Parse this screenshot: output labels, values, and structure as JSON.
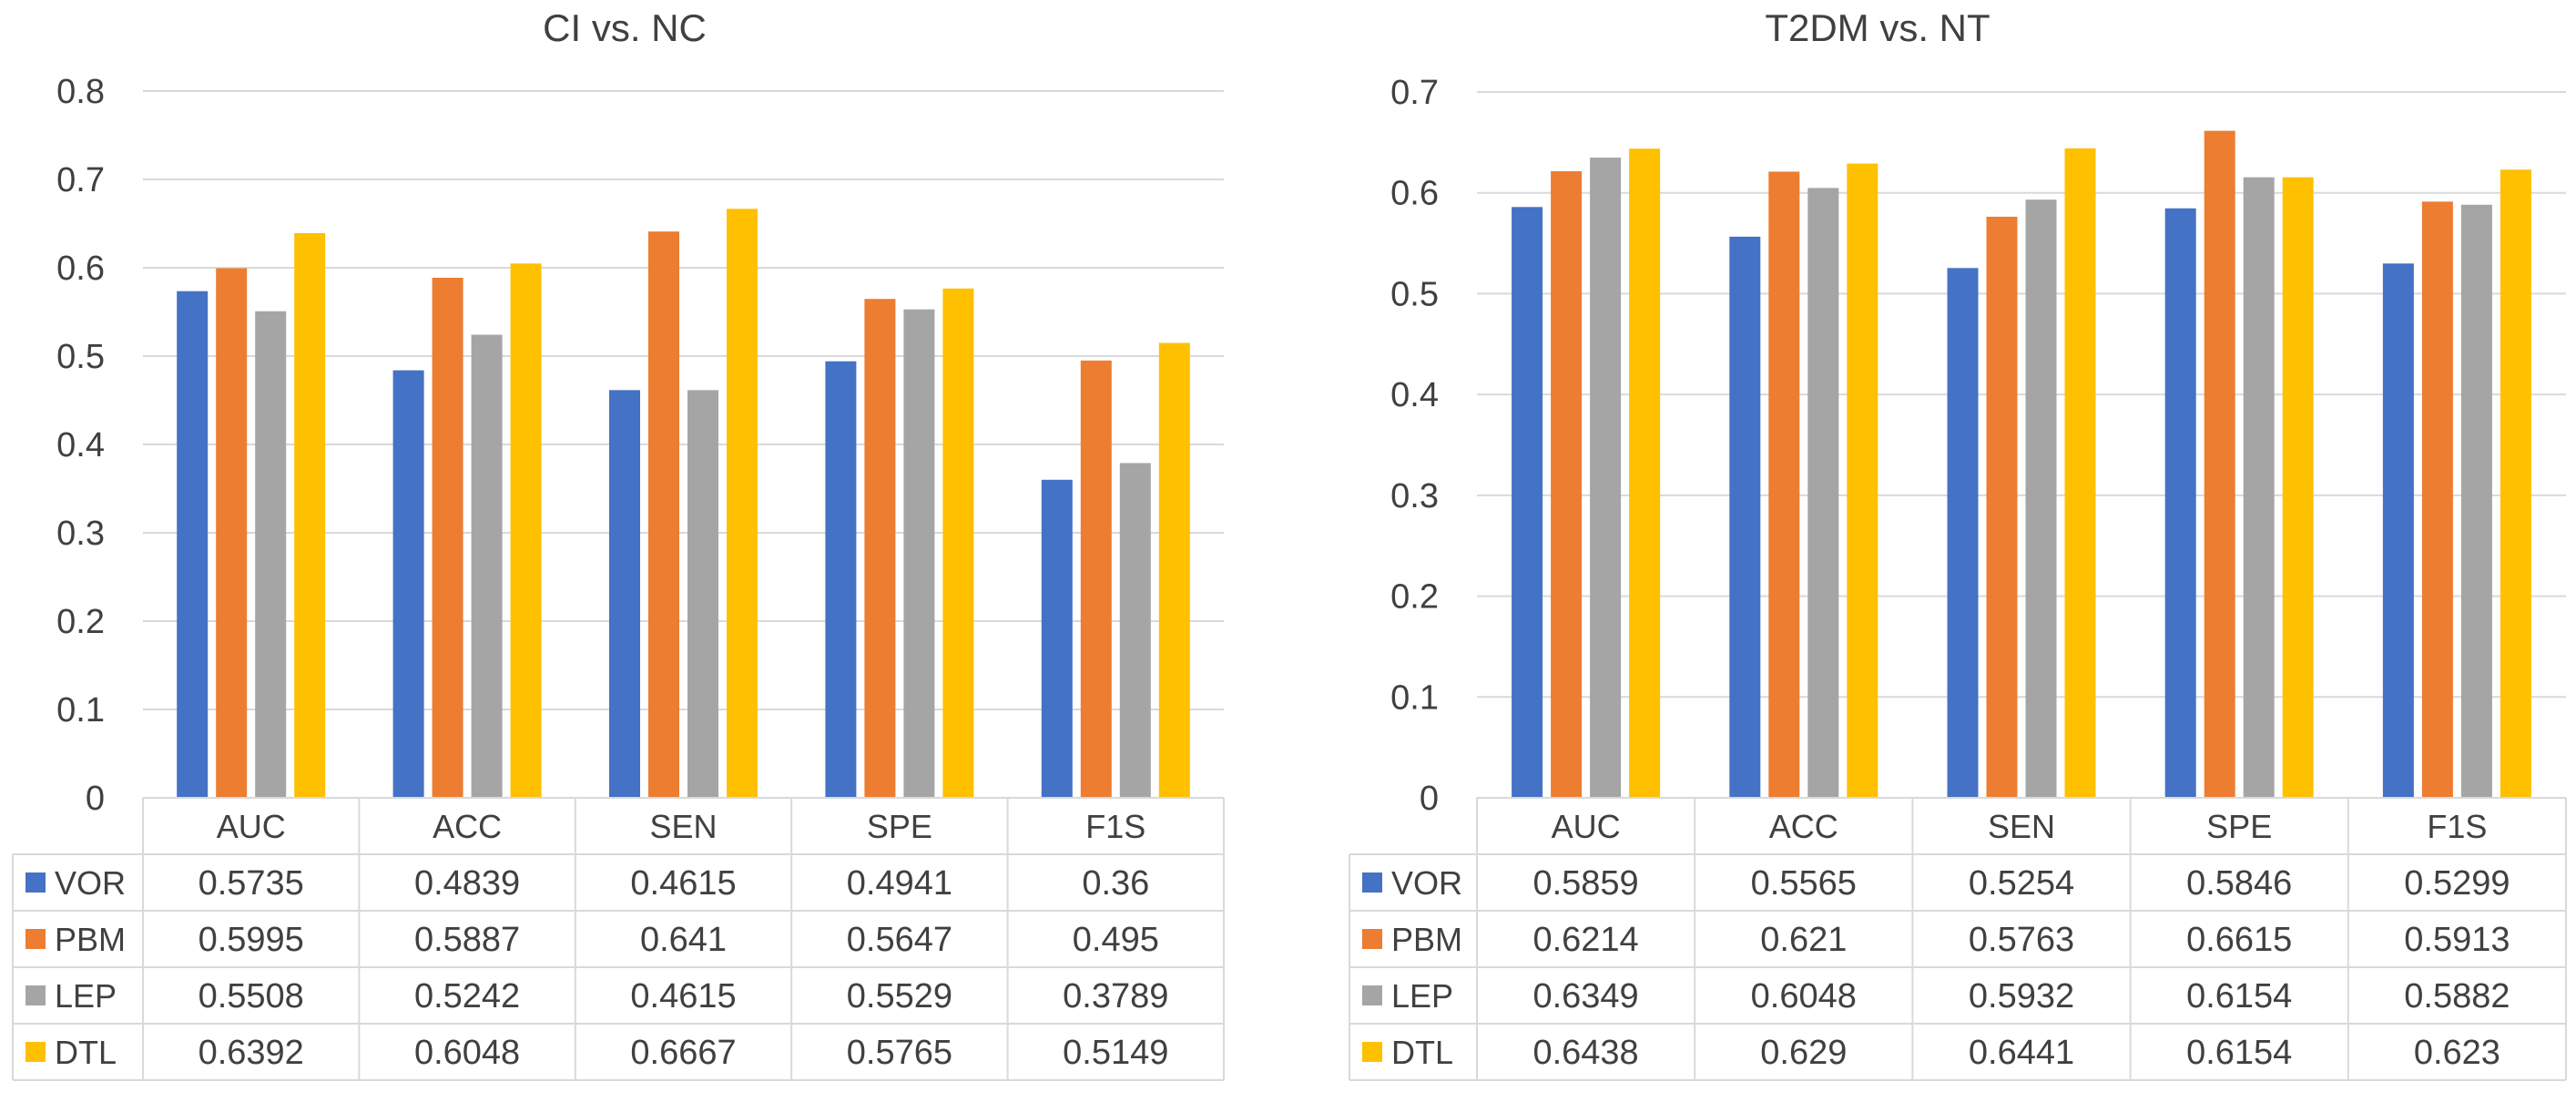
{
  "chart_data": [
    {
      "type": "bar",
      "title": "CI vs. NC",
      "categories": [
        "AUC",
        "ACC",
        "SEN",
        "SPE",
        "F1S"
      ],
      "ylim": [
        0,
        0.8
      ],
      "yticks": [
        "0",
        "0.1",
        "0.2",
        "0.3",
        "0.4",
        "0.5",
        "0.6",
        "0.7",
        "0.8"
      ],
      "grid": true,
      "legend_position": "data-table",
      "series": [
        {
          "name": "VOR",
          "color": "#4472C4",
          "values": [
            0.5735,
            0.4839,
            0.4615,
            0.4941,
            0.36
          ],
          "labels": [
            "0.5735",
            "0.4839",
            "0.4615",
            "0.4941",
            "0.36"
          ]
        },
        {
          "name": "PBM",
          "color": "#ED7D31",
          "values": [
            0.5995,
            0.5887,
            0.641,
            0.5647,
            0.495
          ],
          "labels": [
            "0.5995",
            "0.5887",
            "0.641",
            "0.5647",
            "0.495"
          ]
        },
        {
          "name": "LEP",
          "color": "#A5A5A5",
          "values": [
            0.5508,
            0.5242,
            0.4615,
            0.5529,
            0.3789
          ],
          "labels": [
            "0.5508",
            "0.5242",
            "0.4615",
            "0.5529",
            "0.3789"
          ]
        },
        {
          "name": "DTL",
          "color": "#FFC000",
          "values": [
            0.6392,
            0.6048,
            0.6667,
            0.5765,
            0.5149
          ],
          "labels": [
            "0.6392",
            "0.6048",
            "0.6667",
            "0.5765",
            "0.5149"
          ]
        }
      ]
    },
    {
      "type": "bar",
      "title": "T2DM vs. NT",
      "categories": [
        "AUC",
        "ACC",
        "SEN",
        "SPE",
        "F1S"
      ],
      "ylim": [
        0,
        0.7
      ],
      "yticks": [
        "0",
        "0.1",
        "0.2",
        "0.3",
        "0.4",
        "0.5",
        "0.6",
        "0.7"
      ],
      "grid": true,
      "legend_position": "data-table",
      "series": [
        {
          "name": "VOR",
          "color": "#4472C4",
          "values": [
            0.5859,
            0.5565,
            0.5254,
            0.5846,
            0.5299
          ],
          "labels": [
            "0.5859",
            "0.5565",
            "0.5254",
            "0.5846",
            "0.5299"
          ]
        },
        {
          "name": "PBM",
          "color": "#ED7D31",
          "values": [
            0.6214,
            0.621,
            0.5763,
            0.6615,
            0.5913
          ],
          "labels": [
            "0.6214",
            "0.621",
            "0.5763",
            "0.6615",
            "0.5913"
          ]
        },
        {
          "name": "LEP",
          "color": "#A5A5A5",
          "values": [
            0.6349,
            0.6048,
            0.5932,
            0.6154,
            0.5882
          ],
          "labels": [
            "0.6349",
            "0.6048",
            "0.5932",
            "0.6154",
            "0.5882"
          ]
        },
        {
          "name": "DTL",
          "color": "#FFC000",
          "values": [
            0.6438,
            0.629,
            0.6441,
            0.6154,
            0.623
          ],
          "labels": [
            "0.6438",
            "0.629",
            "0.6441",
            "0.6154",
            "0.623"
          ]
        }
      ]
    }
  ]
}
